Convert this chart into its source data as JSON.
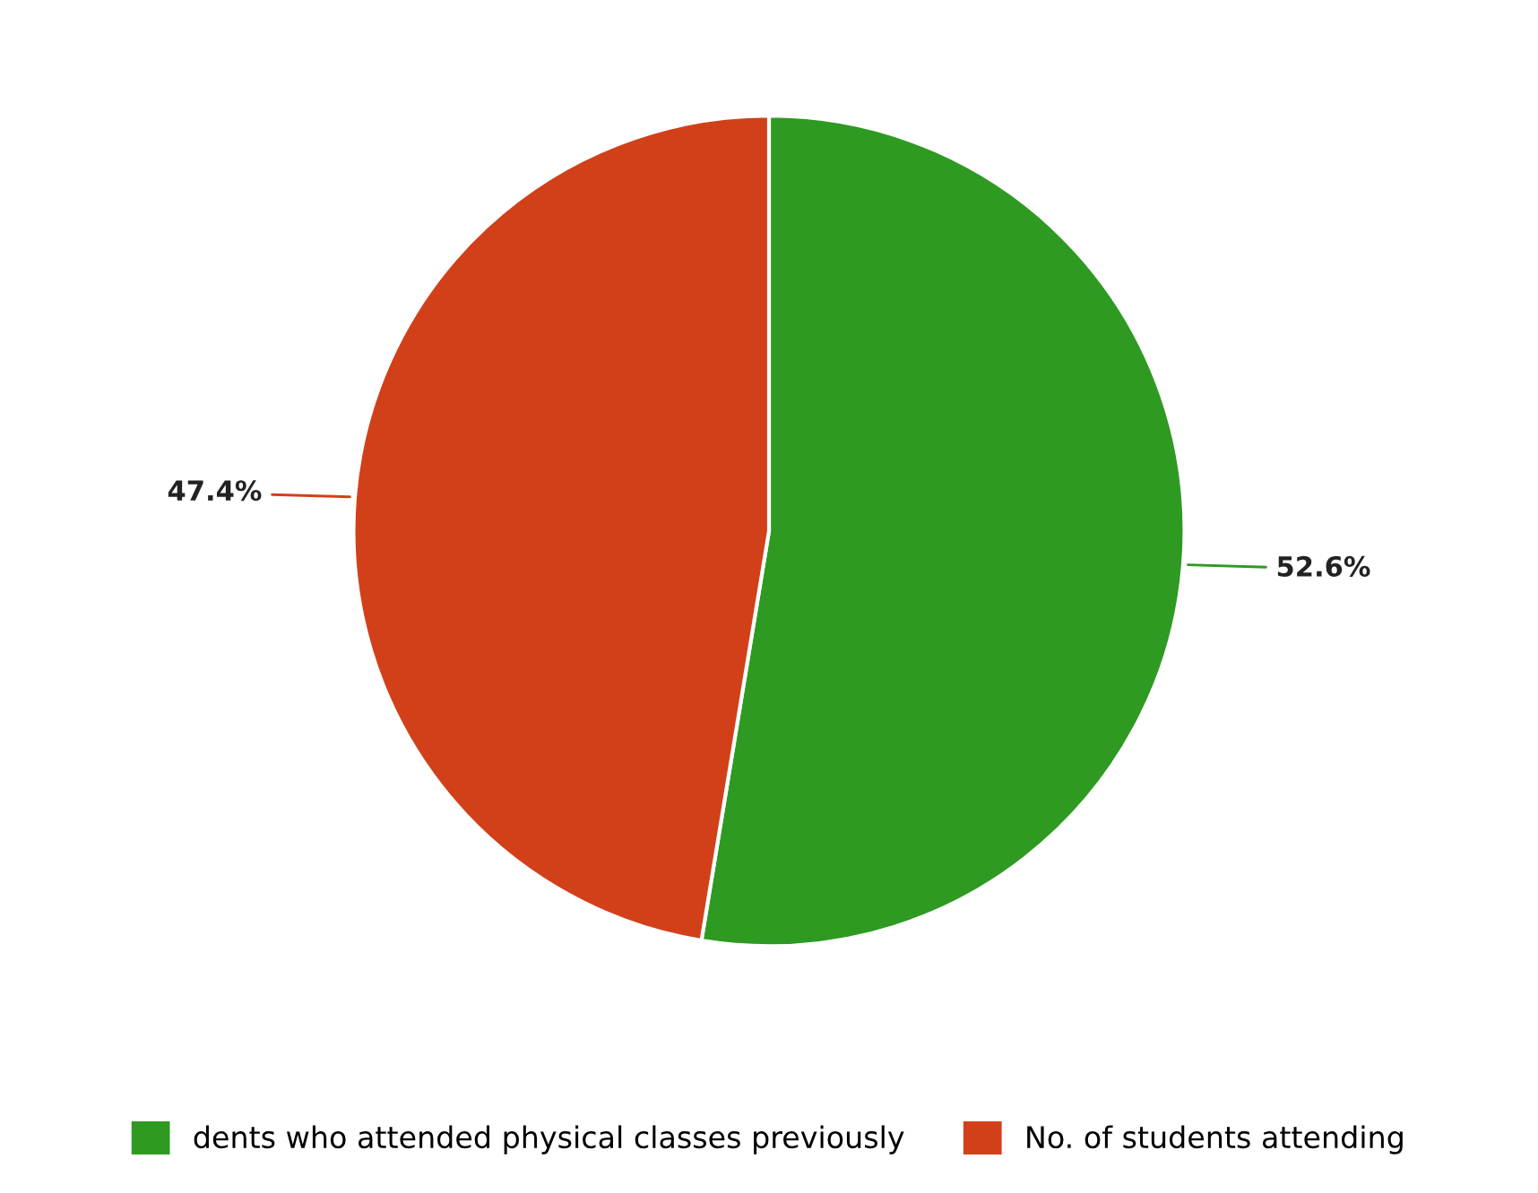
{
  "chart_data": {
    "type": "pie",
    "categories": [
      "dents who attended physical classes previously",
      "No. of students attending"
    ],
    "values": [
      52.6,
      47.4
    ],
    "colors": [
      "#2e9a22",
      "#d2401a"
    ],
    "value_labels": [
      "52.6%",
      "47.4%"
    ],
    "legend": "bottom"
  }
}
